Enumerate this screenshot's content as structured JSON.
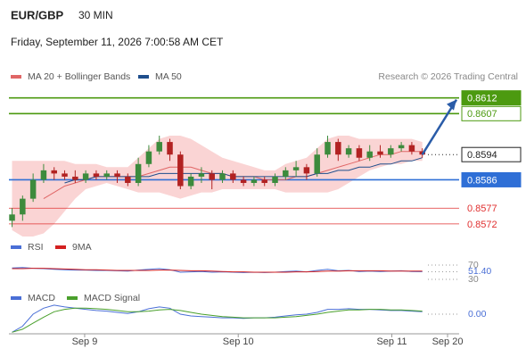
{
  "header": {
    "symbol": "EUR/GBP",
    "interval": "30 MIN",
    "date": "Friday, September 11, 2026 7:00:58 AM CET",
    "source": "Research © 2026 Trading Central"
  },
  "chart_data": [
    {
      "type": "candlestick",
      "x": [
        0,
        1,
        2,
        3,
        4,
        5,
        6,
        7,
        8,
        9,
        10,
        11,
        12,
        13,
        14,
        15,
        16,
        17,
        18,
        19,
        20,
        21,
        22,
        23,
        24,
        25,
        26,
        27,
        28,
        29,
        30,
        31,
        32,
        33,
        34,
        35,
        36,
        37,
        38,
        39
      ],
      "open": [
        0.8573,
        0.8575,
        0.858,
        0.8586,
        0.8589,
        0.8588,
        0.8587,
        0.8586,
        0.8588,
        0.8587,
        0.8588,
        0.8587,
        0.8585,
        0.8591,
        0.8595,
        0.8598,
        0.8594,
        0.8584,
        0.8587,
        0.8588,
        0.8586,
        0.8588,
        0.8586,
        0.8585,
        0.8586,
        0.8585,
        0.8587,
        0.8589,
        0.859,
        0.8588,
        0.8594,
        0.8598,
        0.8594,
        0.8596,
        0.8593,
        0.8595,
        0.8594,
        0.8596,
        0.8597,
        0.8595
      ],
      "high": [
        0.8577,
        0.8581,
        0.8588,
        0.8591,
        0.859,
        0.8589,
        0.8589,
        0.8589,
        0.8589,
        0.8589,
        0.8589,
        0.8588,
        0.8593,
        0.8597,
        0.86,
        0.8599,
        0.8595,
        0.8588,
        0.859,
        0.8589,
        0.8589,
        0.8589,
        0.8587,
        0.8587,
        0.8587,
        0.8588,
        0.859,
        0.8592,
        0.8591,
        0.8596,
        0.86,
        0.8599,
        0.8597,
        0.8597,
        0.8597,
        0.8597,
        0.8597,
        0.8598,
        0.8598,
        0.8596
      ],
      "low": [
        0.8571,
        0.8573,
        0.8579,
        0.8585,
        0.8586,
        0.8586,
        0.8585,
        0.8585,
        0.8586,
        0.8586,
        0.8585,
        0.8584,
        0.8584,
        0.859,
        0.8594,
        0.8592,
        0.8583,
        0.8583,
        0.8585,
        0.8583,
        0.8585,
        0.8585,
        0.8584,
        0.8584,
        0.8584,
        0.8584,
        0.8586,
        0.8587,
        0.8586,
        0.8587,
        0.8593,
        0.8592,
        0.8593,
        0.8592,
        0.8592,
        0.8593,
        0.8593,
        0.8595,
        0.8594,
        0.8593
      ],
      "close": [
        0.8575,
        0.858,
        0.8586,
        0.8589,
        0.8588,
        0.8587,
        0.8586,
        0.8588,
        0.8587,
        0.8588,
        0.8587,
        0.8585,
        0.8591,
        0.8595,
        0.8598,
        0.8594,
        0.8584,
        0.8587,
        0.8588,
        0.8586,
        0.8588,
        0.8586,
        0.8585,
        0.8586,
        0.8585,
        0.8587,
        0.8589,
        0.859,
        0.8588,
        0.8594,
        0.8598,
        0.8594,
        0.8596,
        0.8593,
        0.8595,
        0.8594,
        0.8596,
        0.8597,
        0.8595,
        0.8594
      ],
      "up_color": "#3d8b3d",
      "down_color": "#b22222",
      "series": [
        {
          "name": "MA 20 + Bollinger Bands",
          "color": "#e06666",
          "band_color": "#fad4d4",
          "values": [
            null,
            null,
            null,
            0.858,
            0.8582,
            0.8584,
            0.8585,
            0.8586,
            0.8587,
            0.8587,
            0.8587,
            0.8587,
            0.8587,
            0.8588,
            0.8589,
            0.859,
            0.859,
            0.859,
            0.8589,
            0.8588,
            0.8588,
            0.8587,
            0.8587,
            0.8587,
            0.8586,
            0.8586,
            0.8586,
            0.8587,
            0.8587,
            0.8588,
            0.8589,
            0.859,
            0.8591,
            0.8592,
            0.8593,
            0.8594,
            0.8594,
            0.8595,
            0.8595,
            0.8595
          ],
          "upper": [
            0.8592,
            0.8592,
            0.8592,
            0.8592,
            0.8592,
            0.8592,
            0.8591,
            0.8591,
            0.8591,
            0.859,
            0.859,
            0.859,
            0.8593,
            0.8596,
            0.8599,
            0.86,
            0.86,
            0.8599,
            0.8597,
            0.8595,
            0.8593,
            0.8592,
            0.8591,
            0.859,
            0.8589,
            0.8589,
            0.8591,
            0.8592,
            0.8593,
            0.8596,
            0.8599,
            0.86,
            0.86,
            0.8599,
            0.8599,
            0.8599,
            0.8599,
            0.8599,
            0.8599,
            0.8598
          ],
          "lower": [
            0.857,
            0.8568,
            0.8568,
            0.8569,
            0.8572,
            0.8576,
            0.858,
            0.8583,
            0.8584,
            0.8585,
            0.8584,
            0.8583,
            0.8582,
            0.8582,
            0.8582,
            0.8581,
            0.858,
            0.8581,
            0.8582,
            0.8582,
            0.8583,
            0.8583,
            0.8583,
            0.8583,
            0.8583,
            0.8583,
            0.8582,
            0.8582,
            0.8582,
            0.8582,
            0.8582,
            0.8583,
            0.8585,
            0.8587,
            0.8589,
            0.859,
            0.8591,
            0.8591,
            0.8592,
            0.8592
          ]
        },
        {
          "name": "MA 50",
          "color": "#1f4e8c",
          "values": [
            null,
            null,
            null,
            null,
            null,
            0.8585,
            0.8586,
            0.8586,
            0.8587,
            0.8587,
            0.8587,
            0.8587,
            0.8587,
            0.8587,
            0.8588,
            0.8588,
            0.8588,
            0.8588,
            0.8588,
            0.8588,
            0.8588,
            0.8587,
            0.8587,
            0.8587,
            0.8587,
            0.8587,
            0.8587,
            0.8587,
            0.8587,
            0.8588,
            0.8588,
            0.8589,
            0.8589,
            0.859,
            0.859,
            0.8591,
            0.8591,
            0.8592,
            0.8592,
            0.8593
          ]
        }
      ],
      "levels": [
        {
          "value": 0.8612,
          "color": "#4c9a10",
          "style": "filled"
        },
        {
          "value": 0.8607,
          "color": "#4c9a10",
          "style": "outlined"
        },
        {
          "value": 0.8594,
          "color": "#222222",
          "style": "current"
        },
        {
          "value": 0.8586,
          "color": "#2f6fd6",
          "style": "filled"
        },
        {
          "value": 0.8577,
          "color": "#e03030",
          "style": "plain"
        },
        {
          "value": 0.8572,
          "color": "#e03030",
          "style": "plain"
        }
      ],
      "forecast_color": "#2a5ca8",
      "xlim": [
        -0.3,
        42.5
      ],
      "ylim": [
        0.8568,
        0.8617
      ],
      "xticks": [
        {
          "value": 6.9,
          "label": "Sep 9"
        },
        {
          "value": 21.5,
          "label": "Sep 10"
        },
        {
          "value": 36.1,
          "label": "Sep 11"
        },
        {
          "value": 41.4,
          "label": "Sep 20"
        }
      ]
    },
    {
      "type": "line",
      "series": [
        {
          "name": "RSI",
          "color": "#4a6fd6",
          "values": [
            62,
            63,
            61,
            60,
            58,
            57,
            56,
            56,
            55,
            55,
            54,
            53,
            56,
            58,
            60,
            57,
            50,
            51,
            52,
            50,
            51,
            50,
            49,
            50,
            49,
            50,
            52,
            53,
            51,
            55,
            58,
            54,
            55,
            52,
            53,
            52,
            53,
            54,
            52,
            51.4
          ]
        },
        {
          "name": "9MA",
          "color": "#d32020",
          "values": [
            60,
            60,
            61,
            61,
            60,
            59,
            58,
            57,
            57,
            56,
            55,
            55,
            55,
            55,
            56,
            56,
            55,
            54,
            54,
            53,
            52,
            51,
            51,
            50,
            50,
            50,
            50,
            51,
            51,
            52,
            53,
            53,
            54,
            54,
            54,
            54,
            53,
            53,
            53,
            53
          ]
        }
      ],
      "ylim": [
        22.5,
        92.5
      ],
      "yticks": [
        70,
        {
          "value": 51.4,
          "label": "51.40"
        },
        30
      ]
    },
    {
      "type": "line",
      "series": [
        {
          "name": "MACD",
          "color": "#4a6fd6",
          "values": [
            -0.0003,
            -0.0002,
            0,
            0.0001,
            0.00015,
            0.00012,
            0.0001,
            8e-05,
            6e-05,
            5e-05,
            3e-05,
            1e-05,
            4e-05,
            9e-05,
            0.00012,
            0.0001,
            0,
            -3e-05,
            -4e-05,
            -5e-05,
            -6e-05,
            -6e-05,
            -7e-05,
            -6e-05,
            -6e-05,
            -5e-05,
            -3e-05,
            -1e-05,
            0,
            3e-05,
            8e-05,
            8e-05,
            9e-05,
            8e-05,
            8e-05,
            7e-05,
            6e-05,
            6e-05,
            5e-05,
            4e-05
          ]
        },
        {
          "name": "MACD Signal",
          "color": "#4aa02c",
          "values": [
            -0.0003,
            -0.00025,
            -0.00015,
            -5e-05,
            4e-05,
            8e-05,
            0.0001,
            0.0001,
            9e-05,
            8e-05,
            6e-05,
            4e-05,
            4e-05,
            5e-05,
            7e-05,
            8e-05,
            6e-05,
            3e-05,
            0,
            -2e-05,
            -4e-05,
            -5e-05,
            -6e-05,
            -6e-05,
            -6e-05,
            -6e-05,
            -5e-05,
            -4e-05,
            -2e-05,
            0,
            3e-05,
            5e-05,
            7e-05,
            7e-05,
            8e-05,
            8e-05,
            7e-05,
            7e-05,
            6e-05,
            5e-05
          ]
        }
      ],
      "ylim": [
        -0.0004,
        0.0004
      ],
      "yticks": [
        {
          "value": 0,
          "label": "0.00"
        }
      ]
    }
  ]
}
